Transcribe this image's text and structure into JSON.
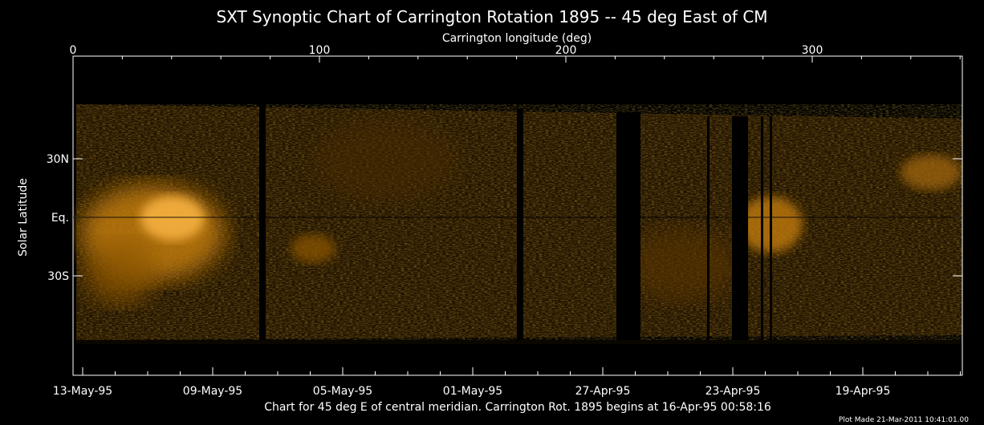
{
  "chart_data": {
    "type": "heatmap",
    "title": "SXT Synoptic Chart of Carrington Rotation 1895 -- 45 deg East of CM",
    "top_xlabel": "Carrington longitude (deg)",
    "ylabel": "Solar Latitude",
    "x_range": [
      0,
      360
    ],
    "top_ticks": [
      {
        "value": 0,
        "label": "0"
      },
      {
        "value": 100,
        "label": "100"
      },
      {
        "value": 200,
        "label": "200"
      },
      {
        "value": 300,
        "label": "300"
      }
    ],
    "y_ticks": [
      {
        "value": 30,
        "label": "30N"
      },
      {
        "value": 0,
        "label": "Eq."
      },
      {
        "value": -30,
        "label": "30S"
      }
    ],
    "bottom_ticks": [
      "13-May-95",
      "09-May-95",
      "05-May-95",
      "01-May-95",
      "27-Apr-95",
      "23-Apr-95",
      "19-Apr-95"
    ],
    "caption": "Chart for 45 deg E of central meridian.  Carrington Rot. 1895 begins at 16-Apr-95 00:58:16",
    "plot_made": "Plot Made 21-Mar-2011 10:41:01.00",
    "colormap": [
      "#000000",
      "#3a2200",
      "#8a5400",
      "#d08a10",
      "#ffd070"
    ],
    "equator_line": true
  }
}
